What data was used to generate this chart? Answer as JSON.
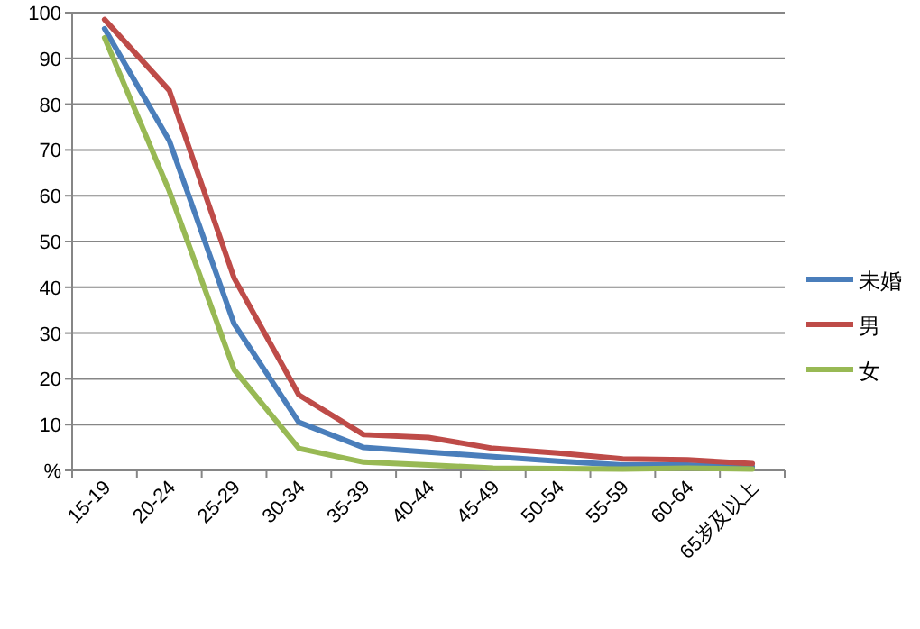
{
  "chart_data": {
    "type": "line",
    "categories": [
      "15-19",
      "20-24",
      "25-29",
      "30-34",
      "35-39",
      "40-44",
      "45-49",
      "50-54",
      "55-59",
      "60-64",
      "65岁及以上"
    ],
    "series": [
      {
        "name": "未婚",
        "color": "#4a7ebb",
        "values": [
          96.5,
          72,
          32,
          10.5,
          5,
          4,
          3,
          2,
          1.2,
          1.2,
          0.8
        ]
      },
      {
        "name": "男",
        "color": "#be4b48",
        "values": [
          98.5,
          83,
          42,
          16.5,
          7.8,
          7.2,
          4.8,
          3.8,
          2.5,
          2.3,
          1.5
        ]
      },
      {
        "name": "女",
        "color": "#98b954",
        "values": [
          94.5,
          61,
          22,
          4.8,
          1.8,
          1.2,
          0.5,
          0.4,
          0.3,
          0.5,
          0.3
        ]
      }
    ],
    "ylim": [
      0,
      100
    ],
    "yticks": [
      {
        "value": 0,
        "label": "%"
      },
      10,
      20,
      30,
      40,
      50,
      60,
      70,
      80,
      90,
      100
    ],
    "grid": "y",
    "legend": "right",
    "marker": "none",
    "line_style": "solid"
  }
}
